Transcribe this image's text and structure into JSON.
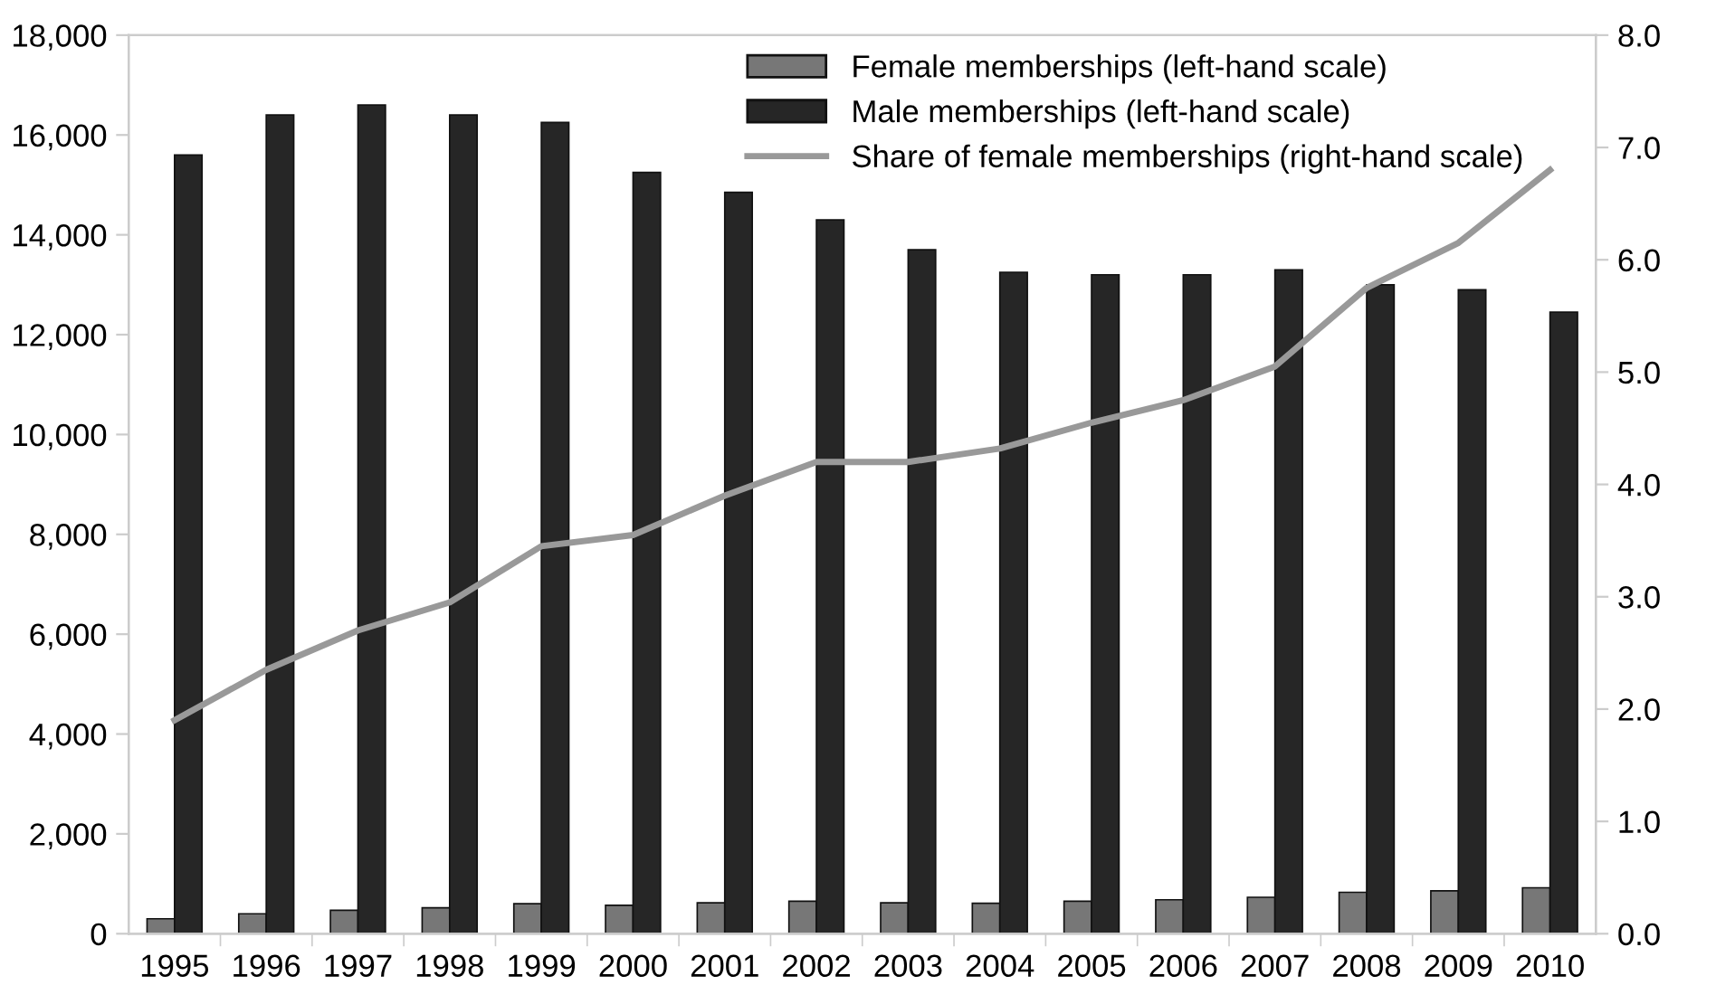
{
  "chart_data": {
    "type": "bar",
    "categories": [
      "1995",
      "1996",
      "1997",
      "1998",
      "1999",
      "2000",
      "2001",
      "2002",
      "2003",
      "2004",
      "2005",
      "2006",
      "2007",
      "2008",
      "2009",
      "2010"
    ],
    "series": [
      {
        "name": "Female memberships (left-hand scale)",
        "color": "#777777",
        "values": [
          300,
          400,
          470,
          520,
          600,
          570,
          620,
          650,
          620,
          610,
          650,
          680,
          730,
          830,
          860,
          920
        ]
      },
      {
        "name": "Male memberships (left-hand scale)",
        "color": "#262626",
        "values": [
          15600,
          16400,
          16600,
          16400,
          16250,
          15250,
          14850,
          14300,
          13700,
          13250,
          13200,
          13200,
          13300,
          13000,
          12900,
          12450
        ]
      },
      {
        "name": "Share of female memberships (right-hand scale)",
        "type": "line",
        "axis": "y2",
        "color": "#999999",
        "values": [
          1.9,
          2.35,
          2.7,
          2.95,
          3.45,
          3.55,
          3.9,
          4.2,
          4.2,
          4.32,
          4.55,
          4.75,
          5.05,
          5.75,
          6.15,
          6.8
        ]
      }
    ],
    "ylim": [
      0,
      18000
    ],
    "yticks": [
      {
        "value": 0,
        "label": "0"
      },
      {
        "value": 2000,
        "label": "2,000"
      },
      {
        "value": 4000,
        "label": "4,000"
      },
      {
        "value": 6000,
        "label": "6,000"
      },
      {
        "value": 8000,
        "label": "8,000"
      },
      {
        "value": 10000,
        "label": "10,000"
      },
      {
        "value": 12000,
        "label": "12,000"
      },
      {
        "value": 14000,
        "label": "14,000"
      },
      {
        "value": 16000,
        "label": "16,000"
      },
      {
        "value": 18000,
        "label": "18,000"
      }
    ],
    "y2lim": [
      0,
      8
    ],
    "y2ticks": [
      {
        "value": 0,
        "label": "0.0"
      },
      {
        "value": 1,
        "label": "1.0"
      },
      {
        "value": 2,
        "label": "2.0"
      },
      {
        "value": 3,
        "label": "3.0"
      },
      {
        "value": 4,
        "label": "4.0"
      },
      {
        "value": 5,
        "label": "5.0"
      },
      {
        "value": 6,
        "label": "6.0"
      },
      {
        "value": 7,
        "label": "7.0"
      },
      {
        "value": 8,
        "label": "8.0"
      }
    ],
    "legend": "top right",
    "grid": false
  }
}
